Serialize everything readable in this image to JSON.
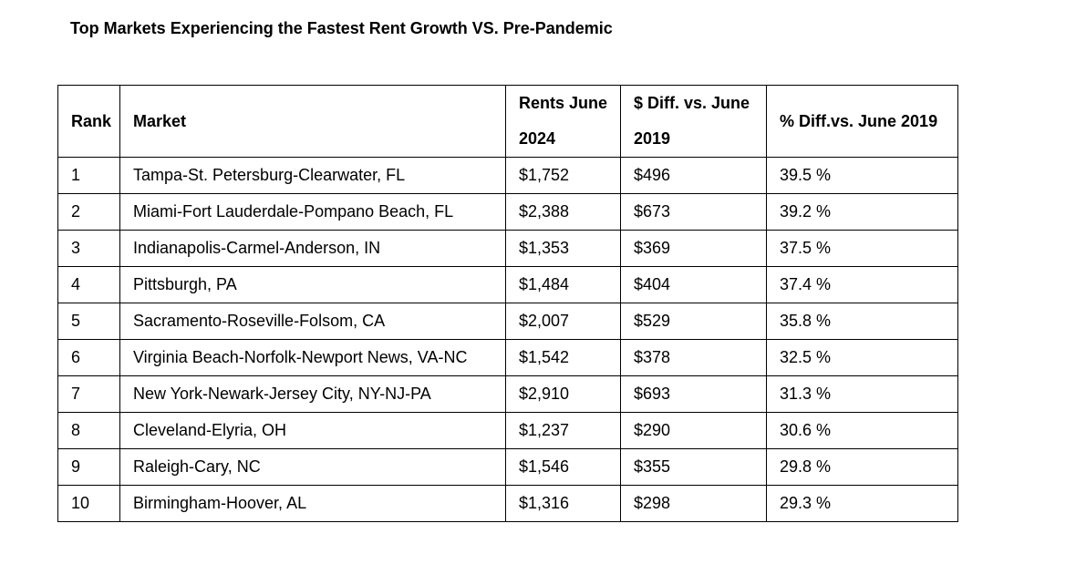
{
  "title": "Top Markets Experiencing the Fastest Rent Growth VS. Pre-Pandemic",
  "table": {
    "headers": {
      "rank": "Rank",
      "market": "Market",
      "rent_line1": "Rents June",
      "rent_line2": "2024",
      "diff_line1": "$ Diff. vs. June",
      "diff_line2": "2019",
      "pct": "% Diff.vs. June 2019"
    },
    "rows": [
      {
        "rank": "1",
        "market": "Tampa-St. Petersburg-Clearwater, FL",
        "rent": "$1,752",
        "diff": "$496",
        "pct": "39.5 %"
      },
      {
        "rank": "2",
        "market": "Miami-Fort Lauderdale-Pompano Beach, FL",
        "rent": "$2,388",
        "diff": "$673",
        "pct": "39.2 %"
      },
      {
        "rank": "3",
        "market": "Indianapolis-Carmel-Anderson, IN",
        "rent": "$1,353",
        "diff": "$369",
        "pct": "37.5 %"
      },
      {
        "rank": "4",
        "market": "Pittsburgh, PA",
        "rent": "$1,484",
        "diff": "$404",
        "pct": "37.4 %"
      },
      {
        "rank": "5",
        "market": "Sacramento-Roseville-Folsom, CA",
        "rent": "$2,007",
        "diff": "$529",
        "pct": "35.8 %"
      },
      {
        "rank": "6",
        "market": "Virginia Beach-Norfolk-Newport News, VA-NC",
        "rent": "$1,542",
        "diff": "$378",
        "pct": "32.5 %"
      },
      {
        "rank": "7",
        "market": "New York-Newark-Jersey City, NY-NJ-PA",
        "rent": "$2,910",
        "diff": "$693",
        "pct": "31.3 %"
      },
      {
        "rank": "8",
        "market": "Cleveland-Elyria, OH",
        "rent": "$1,237",
        "diff": "$290",
        "pct": "30.6 %"
      },
      {
        "rank": "9",
        "market": "Raleigh-Cary, NC",
        "rent": "$1,546",
        "diff": "$355",
        "pct": "29.8 %"
      },
      {
        "rank": "10",
        "market": "Birmingham-Hoover, AL",
        "rent": "$1,316",
        "diff": "$298",
        "pct": "29.3 %"
      }
    ]
  }
}
